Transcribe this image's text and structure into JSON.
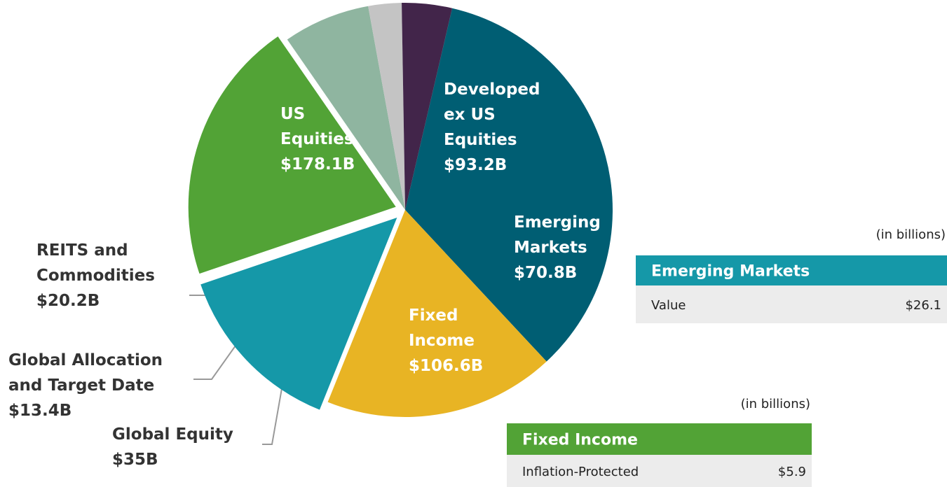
{
  "chart_data": {
    "type": "pie",
    "categories": [
      "US\nEquities",
      "Developed\nex US\nEquities",
      "Emerging\nMarkets",
      "Fixed\nIncome",
      "Global Equity",
      "Global Allocation\nand Target Date",
      "REITS and\nCommodities"
    ],
    "values": [
      178.1,
      93.2,
      70.8,
      106.6,
      35,
      13.4,
      20.2
    ],
    "value_labels": [
      "$178.1B",
      "$93.2B",
      "$70.8B",
      "$106.6B",
      "$35B",
      "$13.4B",
      "$20.2B"
    ],
    "colors": [
      "#005e73",
      "#e8b424",
      "#1598a8",
      "#52a336",
      "#8fb5a0",
      "#c4c4c4",
      "#42254a"
    ]
  },
  "tables": [
    {
      "note": "(in billions)",
      "title": "Emerging Markets",
      "rows": [
        [
          "Value",
          "$26.1"
        ]
      ]
    },
    {
      "note": "(in billions)",
      "title": "Fixed Income",
      "rows": [
        [
          "Inflation-Protected",
          "$5.9"
        ]
      ]
    }
  ]
}
